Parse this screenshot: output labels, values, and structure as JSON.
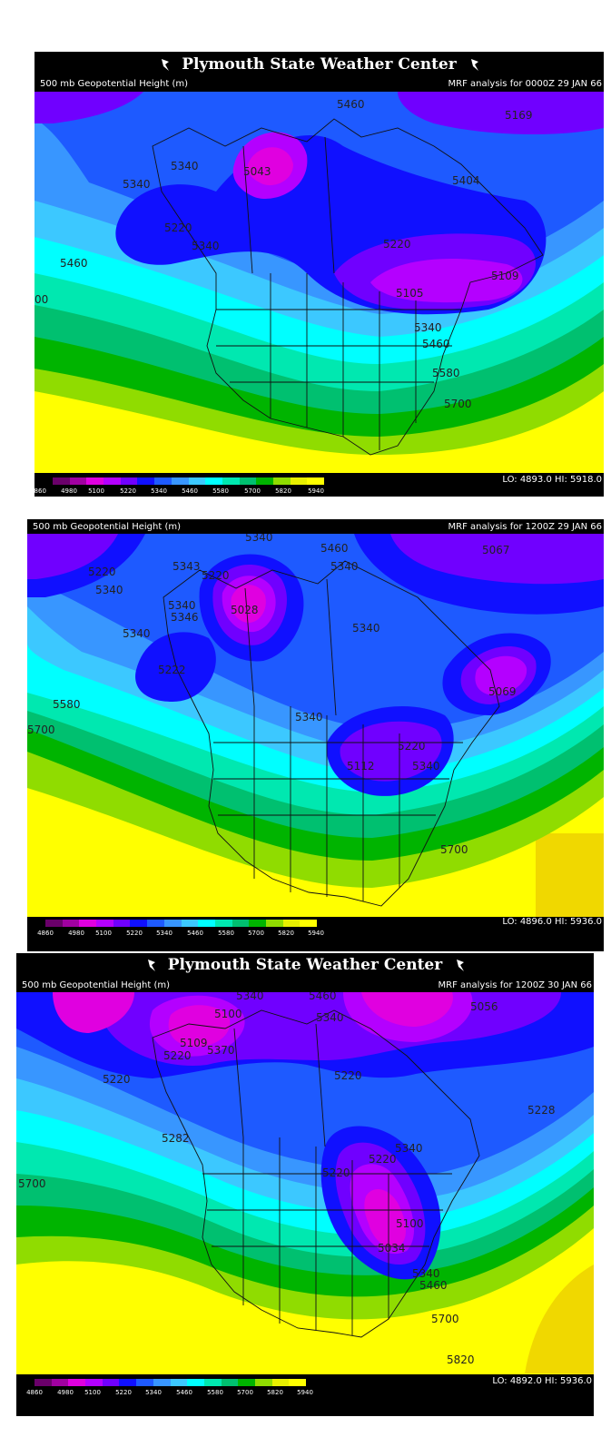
{
  "colors": {
    "scale": [
      "#6a006a",
      "#a000a0",
      "#e000e0",
      "#b400ff",
      "#7000ff",
      "#1010ff",
      "#1e5aff",
      "#3896ff",
      "#3cc8ff",
      "#00ffff",
      "#00e8b0",
      "#00c070",
      "#00b400",
      "#90dc00",
      "#e8f000",
      "#ffff00",
      "#f0d800",
      "#e8b400"
    ]
  },
  "colorbar_ticks": [
    "4860",
    "4980",
    "5100",
    "5220",
    "5340",
    "5460",
    "5580",
    "5700",
    "5820",
    "5940"
  ],
  "panels": [
    {
      "title": "Plymouth State Weather Center",
      "field": "500 mb Geopotential Height (m)",
      "run": "MRF analysis for 0000Z 29 JAN 66",
      "lohi": "LO: 4893.0  HI: 5918.0",
      "labels": [
        {
          "t": "5460"
        },
        {
          "t": "5169"
        },
        {
          "t": "5340"
        },
        {
          "t": "5043"
        },
        {
          "t": "5404"
        },
        {
          "t": "5340"
        },
        {
          "t": "5220"
        },
        {
          "t": "5340"
        },
        {
          "t": "5220"
        },
        {
          "t": "5460"
        },
        {
          "t": "5109"
        },
        {
          "t": "5105"
        },
        {
          "t": "00"
        },
        {
          "t": "5340"
        },
        {
          "t": "5460"
        },
        {
          "t": "5580"
        },
        {
          "t": "5700"
        }
      ]
    },
    {
      "title": "",
      "field": "500 mb Geopotential Height (m)",
      "run": "MRF analysis for 1200Z 29 JAN 66",
      "lohi": "LO: 4896.0  HI: 5936.0",
      "labels": [
        {
          "t": "5340"
        },
        {
          "t": "5460"
        },
        {
          "t": "5067"
        },
        {
          "t": "5220"
        },
        {
          "t": "5343"
        },
        {
          "t": "5220"
        },
        {
          "t": "5340"
        },
        {
          "t": "5340"
        },
        {
          "t": "5340"
        },
        {
          "t": "5346"
        },
        {
          "t": "5028"
        },
        {
          "t": "5340"
        },
        {
          "t": "5340"
        },
        {
          "t": "5222"
        },
        {
          "t": "5069"
        },
        {
          "t": "5580"
        },
        {
          "t": "5700"
        },
        {
          "t": "5340"
        },
        {
          "t": "5220"
        },
        {
          "t": "5112"
        },
        {
          "t": "5340"
        },
        {
          "t": "5700"
        }
      ]
    },
    {
      "title": "Plymouth State Weather Center",
      "field": "500 mb Geopotential Height (m)",
      "run": "MRF analysis for 1200Z 30 JAN 66",
      "lohi": "LO: 4892.0  HI: 5936.0",
      "labels": [
        {
          "t": "5340"
        },
        {
          "t": "5460"
        },
        {
          "t": "5100"
        },
        {
          "t": "5340"
        },
        {
          "t": "5056"
        },
        {
          "t": "5109"
        },
        {
          "t": "5370"
        },
        {
          "t": "5220"
        },
        {
          "t": "5220"
        },
        {
          "t": "5220"
        },
        {
          "t": "5228"
        },
        {
          "t": "5282"
        },
        {
          "t": "5340"
        },
        {
          "t": "5220"
        },
        {
          "t": "5220"
        },
        {
          "t": "5700"
        },
        {
          "t": "5100"
        },
        {
          "t": "5034"
        },
        {
          "t": "5340"
        },
        {
          "t": "5460"
        },
        {
          "t": "5700"
        },
        {
          "t": "5820"
        }
      ]
    }
  ]
}
